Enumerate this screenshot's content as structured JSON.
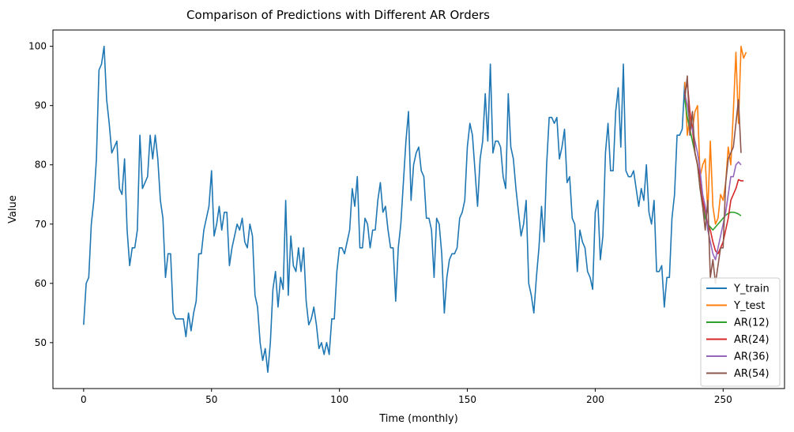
{
  "chart_data": {
    "type": "line",
    "title": "Comparison of Predictions with Different AR Orders",
    "xlabel": "Time (monthly)",
    "ylabel": "Value",
    "xlim": [
      -12,
      274
    ],
    "ylim": [
      42.25,
      102.75
    ],
    "xticks": [
      0,
      50,
      100,
      150,
      200,
      250
    ],
    "yticks": [
      50,
      60,
      70,
      80,
      90,
      100
    ],
    "grid": false,
    "legend_position": "lower-right",
    "series": [
      {
        "name": "Y_train",
        "color": "#1f77b4",
        "x_start": 0,
        "values": [
          53,
          60,
          61,
          70,
          74,
          81,
          96,
          97,
          100,
          91,
          87,
          82,
          83,
          84,
          76,
          75,
          81,
          69,
          63,
          66,
          66,
          69,
          85,
          76,
          77,
          78,
          85,
          81,
          85,
          81,
          74,
          71,
          61,
          65,
          65,
          55,
          54,
          54,
          54,
          54,
          51,
          55,
          52,
          55,
          57,
          65,
          65,
          69,
          71,
          73,
          79,
          68,
          70,
          73,
          69,
          72,
          72,
          63,
          66,
          68,
          70,
          69,
          71,
          67,
          66,
          70,
          68,
          58,
          56,
          50,
          47,
          49,
          45,
          50,
          59,
          62,
          56,
          61,
          59,
          74,
          58,
          68,
          63,
          62,
          66,
          62,
          66,
          57,
          53,
          54,
          56,
          53,
          49,
          50,
          48,
          50,
          48,
          54,
          54,
          62,
          66,
          66,
          65,
          67,
          69,
          76,
          73,
          78,
          66,
          66,
          71,
          70,
          66,
          69,
          69,
          74,
          77,
          72,
          73,
          69,
          66,
          66,
          57,
          66,
          70,
          77,
          84,
          89,
          74,
          80,
          82,
          83,
          79,
          78,
          71,
          71,
          69,
          61,
          71,
          70,
          65,
          55,
          61,
          64,
          65,
          65,
          66,
          71,
          72,
          74,
          83,
          87,
          85,
          79,
          73,
          81,
          84,
          92,
          84,
          97,
          82,
          84,
          84,
          83,
          78,
          76,
          92,
          83,
          81,
          76,
          72,
          68,
          70,
          74,
          60,
          58,
          55,
          61,
          66,
          73,
          67,
          80,
          88,
          88,
          87,
          88,
          81,
          83,
          86,
          77,
          78,
          71,
          70,
          62,
          69,
          67,
          66,
          62,
          61,
          59,
          72,
          74,
          64,
          68,
          82,
          87,
          79,
          79,
          89,
          93,
          83,
          97,
          79,
          78,
          78,
          79,
          76,
          73,
          76,
          74,
          80,
          72,
          70,
          74,
          62,
          62,
          63,
          56,
          61,
          61,
          71,
          75,
          85,
          85,
          86,
          94
        ]
      },
      {
        "name": "Y_test",
        "color": "#ff7f0e",
        "x_start": 235,
        "values": [
          94,
          85,
          88,
          86,
          89,
          90,
          78,
          80,
          81,
          72,
          84,
          73,
          70,
          71,
          75,
          74,
          77,
          83,
          80,
          89,
          99,
          87,
          100,
          98,
          99
        ]
      },
      {
        "name": "AR(12)",
        "color": "#2ca02c",
        "x_start": 235,
        "values": [
          91,
          88,
          86,
          84,
          82,
          80,
          76,
          73,
          71,
          70,
          69.5,
          69,
          69.5,
          70,
          70.5,
          71,
          71.5,
          71.8,
          72,
          72,
          71.9,
          71.7,
          71.4
        ]
      },
      {
        "name": "AR(24)",
        "color": "#d62728",
        "x_start": 235,
        "values": [
          92,
          94,
          89,
          86,
          82,
          80,
          78,
          74,
          72,
          70,
          69,
          67,
          65.5,
          65,
          66,
          67,
          69,
          71,
          74,
          75,
          76,
          77.5,
          77.3,
          77.3
        ]
      },
      {
        "name": "AR(36)",
        "color": "#9467bd",
        "x_start": 235,
        "values": [
          92,
          90,
          87,
          86,
          84,
          82,
          79,
          75,
          73,
          69,
          67,
          65,
          64,
          66,
          68,
          70,
          72,
          75,
          78,
          78,
          80,
          80.5,
          80
        ]
      },
      {
        "name": "AR(54)",
        "color": "#8c564b",
        "x_start": 235,
        "values": [
          91,
          95,
          85,
          89,
          82,
          80,
          76,
          73,
          69,
          74,
          61,
          64,
          60,
          63,
          66,
          66,
          77,
          81,
          82,
          83,
          87,
          91,
          82
        ]
      }
    ]
  }
}
